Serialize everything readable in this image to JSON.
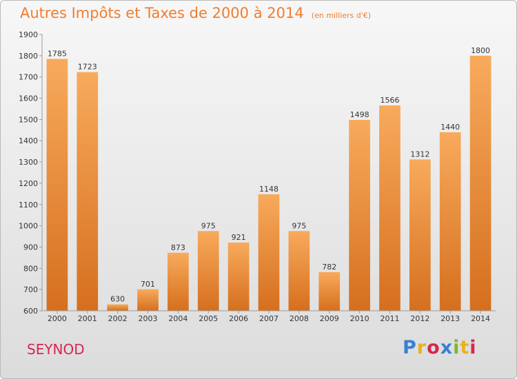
{
  "title": "Autres Impôts et Taxes de 2000 à 2014",
  "subtitle": "(en milliers d'€)",
  "city": "SEYNOD",
  "brand": {
    "name": "Proxiti",
    "colors": [
      "#3a7fd2",
      "#e8b21b",
      "#d7264f",
      "#3a7fd2",
      "#7cb82f",
      "#e8b21b",
      "#d7264f"
    ]
  },
  "colors": {
    "bar_light": "#f8aa5c",
    "bar_dark": "#d56f1e",
    "title": "#f07d2f"
  },
  "chart_data": {
    "type": "bar",
    "categories": [
      "2000",
      "2001",
      "2002",
      "2003",
      "2004",
      "2005",
      "2006",
      "2007",
      "2008",
      "2009",
      "2010",
      "2011",
      "2012",
      "2013",
      "2014"
    ],
    "values": [
      1785,
      1723,
      630,
      701,
      873,
      975,
      921,
      1148,
      975,
      782,
      1498,
      1566,
      1312,
      1440,
      1800
    ],
    "title": "Autres Impôts et Taxes de 2000 à 2014",
    "subtitle": "(en milliers d'€)",
    "xlabel": "",
    "ylabel": "",
    "ylim": [
      600,
      1900
    ],
    "yticks": [
      600,
      700,
      800,
      900,
      1000,
      1100,
      1200,
      1300,
      1400,
      1500,
      1600,
      1700,
      1800,
      1900
    ],
    "grid": false,
    "data_labels": true
  }
}
